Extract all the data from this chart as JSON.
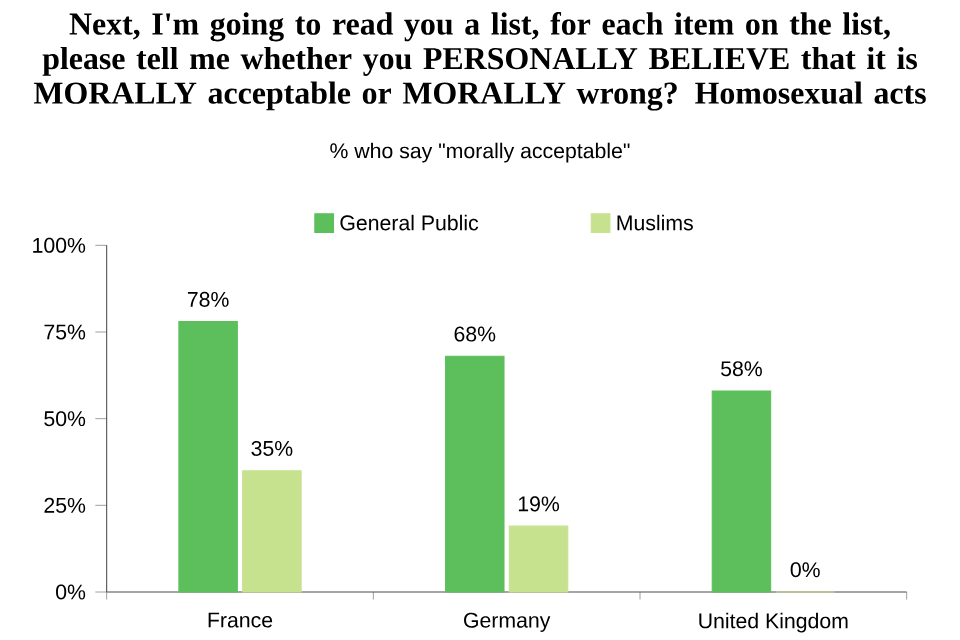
{
  "chart_data": {
    "type": "bar",
    "title": "Next, I'm going to read you a list, for each item on the list, please tell me whether you PERSONALLY BELIEVE that it is MORALLY acceptable or MORALLY wrong?  Homosexual acts",
    "subtitle": "% who say \"morally acceptable\"",
    "categories": [
      "France",
      "Germany",
      "United Kingdom"
    ],
    "series": [
      {
        "name": "General Public",
        "color": "#5cbf5c",
        "values": [
          78,
          68,
          58
        ],
        "value_labels": [
          "78%",
          "68%",
          "58%"
        ]
      },
      {
        "name": "Muslims",
        "color": "#c6e28e",
        "values": [
          35,
          19,
          0
        ],
        "value_labels": [
          "35%",
          "19%",
          "0%"
        ]
      }
    ],
    "ylim": [
      0,
      100
    ],
    "yticks": [
      {
        "value": 0,
        "label": "0%"
      },
      {
        "value": 25,
        "label": "25%"
      },
      {
        "value": 50,
        "label": "50%"
      },
      {
        "value": 75,
        "label": "75%"
      },
      {
        "value": 100,
        "label": "100%"
      }
    ],
    "legend": "top",
    "grid": false
  }
}
